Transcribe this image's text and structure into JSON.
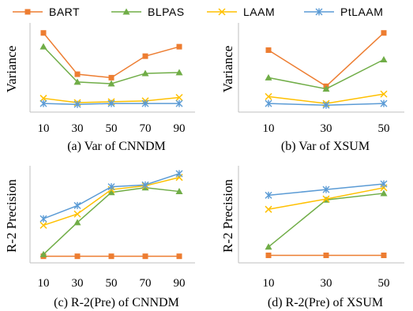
{
  "colors": {
    "BART": "#ED7D31",
    "BLPAS": "#70AD47",
    "LAAM": "#FFC000",
    "PtLAAM": "#5B9BD5",
    "axis": "#BFBFBF"
  },
  "legend": {
    "entries": [
      {
        "name": "BART",
        "marker": "square",
        "color": "#ED7D31"
      },
      {
        "name": "BLPAS",
        "marker": "triangle",
        "color": "#70AD47"
      },
      {
        "name": "LAAM",
        "marker": "x",
        "color": "#FFC000"
      },
      {
        "name": "PtLAAM",
        "marker": "star",
        "color": "#5B9BD5"
      }
    ],
    "placement": "top"
  },
  "chart_data": [
    {
      "type": "line",
      "caption": "(a) Var of CNNDM",
      "ylabel": "Variance",
      "xlabel": "",
      "categories": [
        "10",
        "30",
        "50",
        "70",
        "90"
      ],
      "ylim": [
        0,
        100
      ],
      "y_ticks_shown": false,
      "series": [
        {
          "name": "BART",
          "values": [
            92,
            44,
            40,
            65,
            76
          ]
        },
        {
          "name": "BLPAS",
          "values": [
            76,
            35,
            33,
            45,
            46
          ]
        },
        {
          "name": "LAAM",
          "values": [
            16,
            11,
            12,
            13,
            17
          ]
        },
        {
          "name": "PtLAAM",
          "values": [
            10,
            9,
            10,
            10,
            10
          ]
        }
      ]
    },
    {
      "type": "line",
      "caption": "(b) Var of XSUM",
      "ylabel": "Variance",
      "xlabel": "",
      "categories": [
        "10",
        "30",
        "50"
      ],
      "ylim": [
        0,
        100
      ],
      "y_ticks_shown": false,
      "series": [
        {
          "name": "BART",
          "values": [
            72,
            30,
            92
          ]
        },
        {
          "name": "BLPAS",
          "values": [
            40,
            27,
            61
          ]
        },
        {
          "name": "LAAM",
          "values": [
            18,
            10,
            21
          ]
        },
        {
          "name": "PtLAAM",
          "values": [
            10,
            8,
            10
          ]
        }
      ]
    },
    {
      "type": "line",
      "caption": "(c) R-2(Pre) of CNNDM",
      "ylabel": "R-2 Precision",
      "xlabel": "",
      "categories": [
        "10",
        "30",
        "50",
        "70",
        "90"
      ],
      "ylim": [
        0,
        100
      ],
      "y_ticks_shown": false,
      "series": [
        {
          "name": "BART",
          "values": [
            7,
            7,
            7,
            7,
            7
          ]
        },
        {
          "name": "BLPAS",
          "values": [
            9,
            43,
            75,
            80,
            76
          ]
        },
        {
          "name": "LAAM",
          "values": [
            40,
            52,
            78,
            82,
            91
          ]
        },
        {
          "name": "PtLAAM",
          "values": [
            47,
            61,
            81,
            83,
            95
          ]
        }
      ]
    },
    {
      "type": "line",
      "caption": "(d) R-2(Pre) of XSUM",
      "ylabel": "R-2 Precision",
      "xlabel": "",
      "categories": [
        "10",
        "30",
        "50"
      ],
      "ylim": [
        0,
        100
      ],
      "y_ticks_shown": false,
      "series": [
        {
          "name": "BART",
          "values": [
            8,
            8,
            8
          ]
        },
        {
          "name": "BLPAS",
          "values": [
            17,
            67,
            74
          ]
        },
        {
          "name": "LAAM",
          "values": [
            57,
            68,
            80
          ]
        },
        {
          "name": "PtLAAM",
          "values": [
            72,
            78,
            84
          ]
        }
      ]
    }
  ]
}
